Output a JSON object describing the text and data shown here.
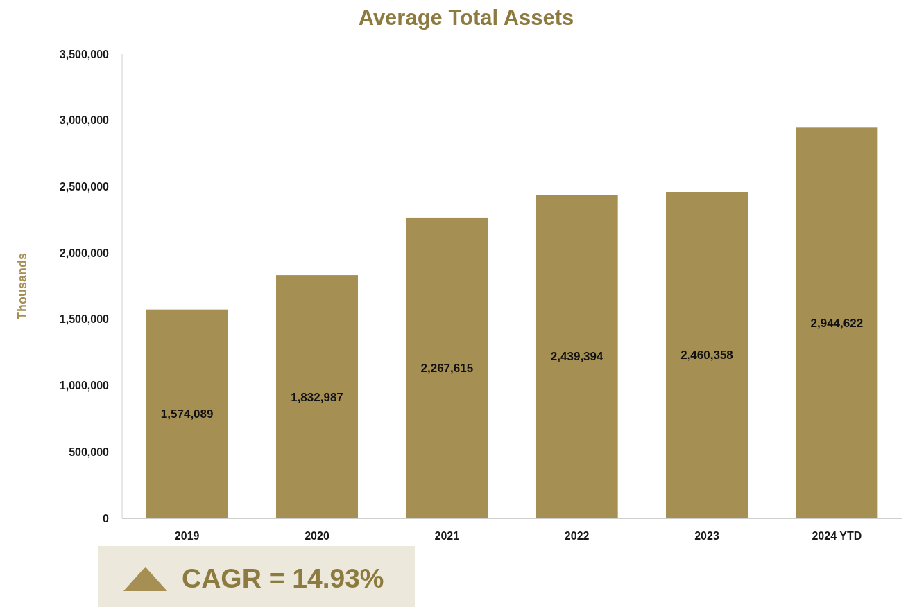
{
  "chart_data": {
    "type": "bar",
    "title": "Average Total Assets",
    "ylabel": "Thousands",
    "categories": [
      "2019",
      "2020",
      "2021",
      "2022",
      "2023",
      "2024 YTD"
    ],
    "values": [
      1574089,
      1832987,
      2267615,
      2439394,
      2460358,
      2944622
    ],
    "color": "#a58f52",
    "ylim": [
      0,
      3500000
    ],
    "yticks": [
      {
        "value": 0,
        "label": "0"
      },
      {
        "value": 500000,
        "label": "500,000"
      },
      {
        "value": 1000000,
        "label": "1,000,000"
      },
      {
        "value": 1500000,
        "label": "1,500,000"
      },
      {
        "value": 2000000,
        "label": "2,000,000"
      },
      {
        "value": 2500000,
        "label": "2,500,000"
      },
      {
        "value": 3000000,
        "label": "3,000,000"
      },
      {
        "value": 3500000,
        "label": "3,500,000"
      }
    ],
    "value_labels": [
      "1,574,089",
      "1,832,987",
      "2,267,615",
      "2,439,394",
      "2,460,358",
      "2,944,622"
    ],
    "grid": false,
    "annotations": [
      "CAGR = 14.93%"
    ]
  }
}
